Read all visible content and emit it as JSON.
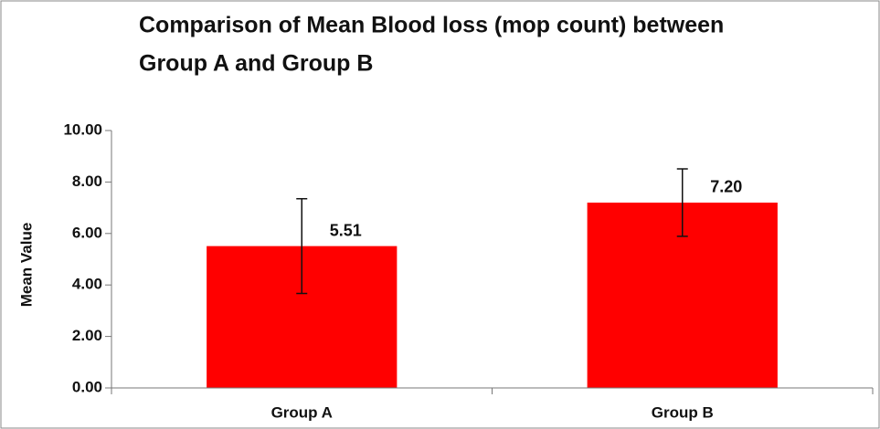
{
  "chart_data": {
    "type": "bar",
    "title": [
      "Comparison of Mean Blood loss (mop count) between",
      "Group A and Group B"
    ],
    "y_label": "Mean Value",
    "categories": [
      "Group A",
      "Group B"
    ],
    "values": [
      5.51,
      7.2
    ],
    "value_labels": [
      "5.51",
      "7.20"
    ],
    "errors": [
      1.84,
      1.31
    ],
    "color": "#ff0000",
    "ylim": [
      0,
      10
    ],
    "yticks": [
      {
        "value": 0,
        "label": "0.00"
      },
      {
        "value": 2,
        "label": "2.00"
      },
      {
        "value": 4,
        "label": "4.00"
      },
      {
        "value": 6,
        "label": "6.00"
      },
      {
        "value": 8,
        "label": "8.00"
      },
      {
        "value": 10,
        "label": "10.00"
      }
    ],
    "grid": false
  }
}
